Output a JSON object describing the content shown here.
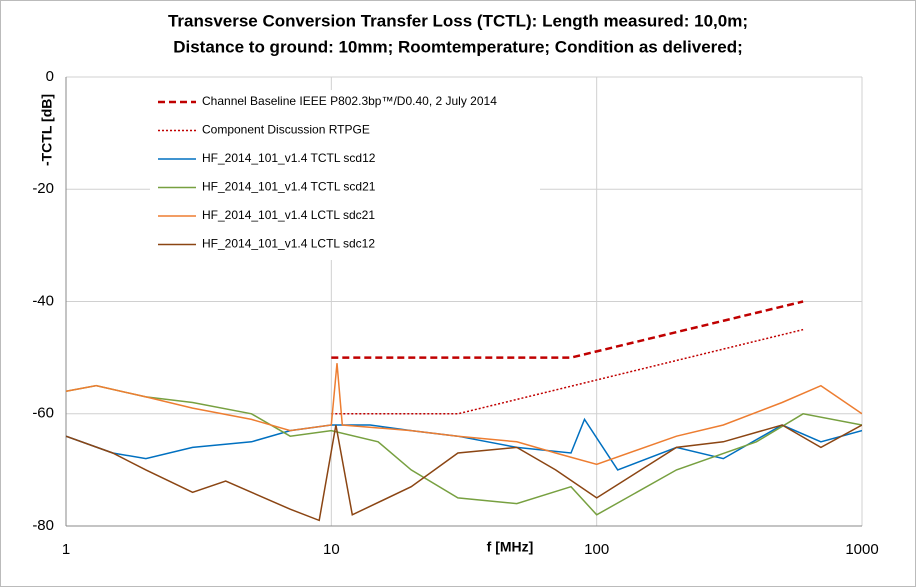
{
  "chart_data": {
    "type": "line",
    "title": [
      "Transverse Conversion Transfer Loss (TCTL): Length measured: 10,0m;",
      "Distance to ground: 10mm; Roomtemperature; Condition as delivered;"
    ],
    "x_label": "f [MHz]",
    "y_label": "-TCTL [dB]",
    "xscale": "log",
    "xlim": [
      1,
      1000
    ],
    "xticks": [
      1,
      10,
      100,
      1000
    ],
    "ylim": [
      -80,
      0
    ],
    "yticks": [
      -80,
      -60,
      -40,
      -20,
      0
    ],
    "grid": true,
    "legend": "top-left",
    "series": [
      {
        "name": "Channel Baseline IEEE P802.3bp™/D0.40, 2 July 2014",
        "color": "#c00000",
        "dash": "dashed",
        "x": [
          10,
          80,
          600
        ],
        "values": [
          -50,
          -50,
          -40
        ]
      },
      {
        "name": "Component Discussion RTPGE",
        "color": "#c00000",
        "dash": "dotted",
        "x": [
          10,
          30,
          600
        ],
        "values": [
          -60,
          -60,
          -45
        ]
      },
      {
        "name": "HF_2014_101_v1.4 TCTL scd12",
        "color": "#0070c0",
        "dash": "solid",
        "x": [
          1,
          1.5,
          2,
          3,
          5,
          7,
          10,
          14,
          20,
          30,
          50,
          80,
          90,
          120,
          200,
          300,
          500,
          700,
          1000
        ],
        "values": [
          -64,
          -67,
          -68,
          -66,
          -65,
          -63,
          -62,
          -62,
          -63,
          -64,
          -66,
          -67,
          -61,
          -70,
          -66,
          -68,
          -62,
          -65,
          -63
        ]
      },
      {
        "name": "HF_2014_101_v1.4 TCTL scd21",
        "color": "#77a040",
        "dash": "solid",
        "x": [
          1,
          1.3,
          2,
          3,
          5,
          7,
          10,
          15,
          20,
          30,
          50,
          80,
          100,
          200,
          400,
          600,
          1000
        ],
        "values": [
          -56,
          -55,
          -57,
          -58,
          -60,
          -64,
          -63,
          -65,
          -70,
          -75,
          -76,
          -73,
          -78,
          -70,
          -65,
          -60,
          -62
        ]
      },
      {
        "name": "HF_2014_101_v1.4 LCTL sdc21",
        "color": "#ed7d31",
        "dash": "solid",
        "x": [
          1,
          1.3,
          2,
          3,
          5,
          7,
          10,
          10.5,
          11,
          20,
          30,
          50,
          70,
          100,
          200,
          300,
          500,
          700,
          1000
        ],
        "values": [
          -56,
          -55,
          -57,
          -59,
          -61,
          -63,
          -62,
          -51,
          -62,
          -63,
          -64,
          -65,
          -67,
          -69,
          -64,
          -62,
          -58,
          -55,
          -60
        ]
      },
      {
        "name": "HF_2014_101_v1.4 LCTL sdc12",
        "color": "#8b4513",
        "dash": "solid",
        "x": [
          1,
          1.5,
          2,
          3,
          4,
          5,
          7,
          9,
          10.4,
          12,
          20,
          30,
          50,
          70,
          100,
          200,
          300,
          500,
          700,
          1000
        ],
        "values": [
          -64,
          -67,
          -70,
          -74,
          -72,
          -74,
          -77,
          -79,
          -62,
          -78,
          -73,
          -67,
          -66,
          -70,
          -75,
          -66,
          -65,
          -62,
          -66,
          -62
        ]
      }
    ]
  }
}
